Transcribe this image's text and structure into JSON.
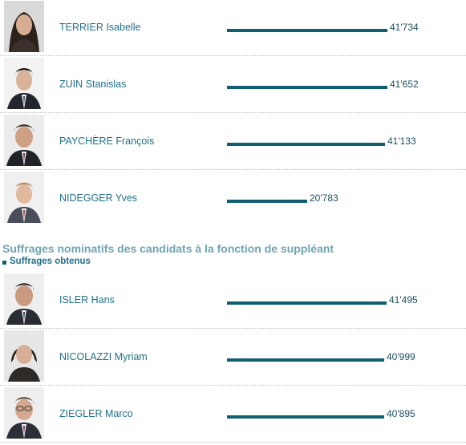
{
  "chart_data": [
    {
      "type": "bar",
      "title": "",
      "categories": [
        "TERRIER Isabelle",
        "ZUIN Stanislas",
        "PAYCHÈRE François",
        "NIDEGGER Yves"
      ],
      "values": [
        41734,
        41652,
        41133,
        20783
      ],
      "value_labels": [
        "41'734",
        "41'652",
        "41'133",
        "20'783"
      ],
      "bar_color": "#0f5e72"
    },
    {
      "type": "bar",
      "title": "Suffrages nominatifs des candidats à la fonction de suppléant",
      "legend": [
        "Suffrages obtenus"
      ],
      "categories": [
        "ISLER Hans",
        "NICOLAZZI Myriam",
        "ZIEGLER Marco"
      ],
      "values": [
        41495,
        40999,
        40895
      ],
      "value_labels": [
        "41'495",
        "40'999",
        "40'895"
      ],
      "bar_color": "#0f5e72"
    }
  ],
  "colors": {
    "bar": "#0f5e72",
    "name_text": "#1f6f8a",
    "section_title": "#6ea3b4"
  }
}
